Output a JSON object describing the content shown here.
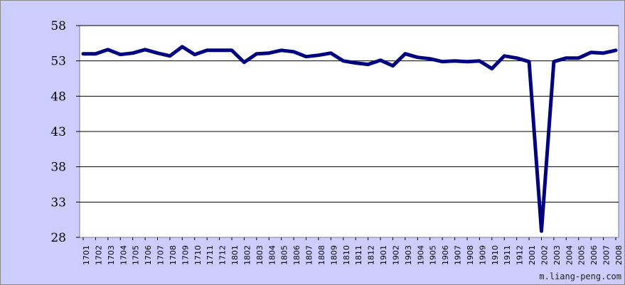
{
  "chart_data": {
    "type": "line",
    "title": "",
    "xlabel": "",
    "ylabel": "",
    "ylim": [
      28,
      58
    ],
    "yticks": [
      28,
      33,
      38,
      43,
      48,
      53,
      58
    ],
    "grid": true,
    "legend": "none",
    "colors": {
      "background": "#ccccff",
      "plot": "#ffffff",
      "line": "#000080",
      "grid": "#000000"
    },
    "categories": [
      "1701",
      "1702",
      "1703",
      "1704",
      "1705",
      "1706",
      "1707",
      "1708",
      "1709",
      "1710",
      "1711",
      "1712",
      "1801",
      "1802",
      "1803",
      "1804",
      "1805",
      "1806",
      "1807",
      "1808",
      "1809",
      "1810",
      "1811",
      "1812",
      "1901",
      "1902",
      "1903",
      "1904",
      "1905",
      "1906",
      "1907",
      "1908",
      "1909",
      "1910",
      "1911",
      "1912",
      "2001",
      "2002",
      "2003",
      "2004",
      "2005",
      "2006",
      "2007",
      "2008"
    ],
    "series": [
      {
        "values": [
          54.0,
          54.0,
          54.6,
          53.9,
          54.1,
          54.6,
          54.1,
          53.7,
          55.0,
          53.9,
          54.5,
          54.5,
          54.5,
          52.8,
          54.0,
          54.1,
          54.5,
          54.3,
          53.6,
          53.8,
          54.1,
          53.0,
          52.7,
          52.5,
          53.1,
          52.3,
          54.0,
          53.5,
          53.3,
          52.9,
          53.0,
          52.9,
          53.0,
          51.9,
          53.7,
          53.4,
          52.9,
          28.9,
          52.9,
          53.4,
          53.4,
          54.2,
          54.1,
          54.5
        ]
      }
    ]
  },
  "watermark": "m.liang-peng.com"
}
